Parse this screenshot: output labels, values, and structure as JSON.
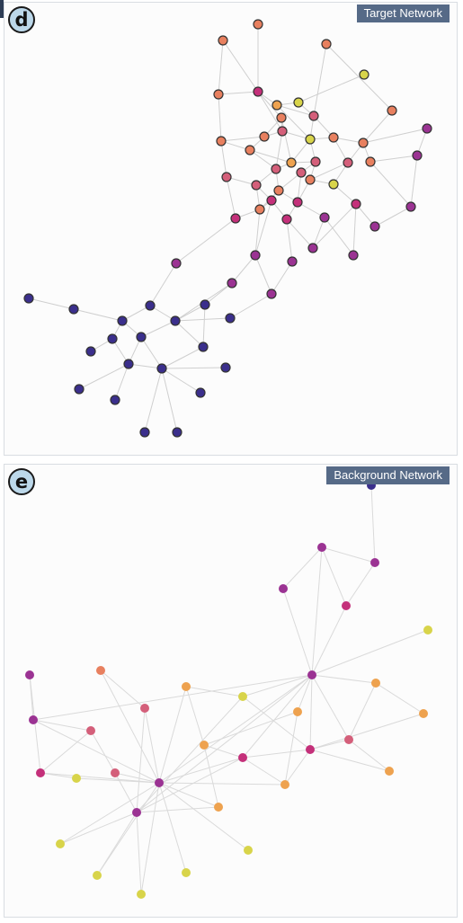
{
  "panels": [
    {
      "id": "d",
      "badge": "d",
      "tab_label": "Target Network",
      "palette": {
        "indigo": "#3b2f8c",
        "violet": "#9b3393",
        "magenta": "#c4307a",
        "pink": "#d45f7a",
        "coral": "#e8805f",
        "orange": "#eea24f",
        "yellow": "#d8d44a"
      },
      "node_outline": "#333333",
      "edge_color": "#cfcfcf"
    },
    {
      "id": "e",
      "badge": "e",
      "tab_label": "Background Network",
      "palette": {
        "indigo": "#3b2f8c",
        "violet": "#9b3393",
        "magenta": "#c4307a",
        "pink": "#d45f7a",
        "coral": "#e8805f",
        "orange": "#eea24f",
        "yellow": "#d8d44a"
      },
      "node_outline": "none",
      "edge_color": "#dadada"
    }
  ]
}
